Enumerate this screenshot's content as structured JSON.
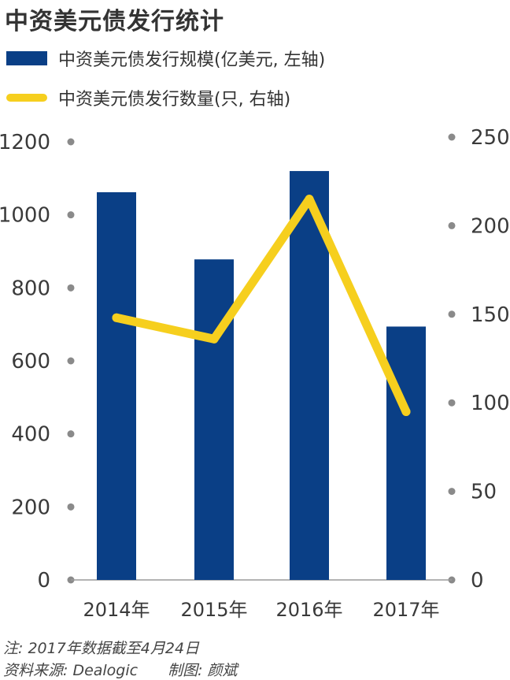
{
  "title": "中资美元债发行统计",
  "colors": {
    "bar": "#0a3f86",
    "line": "#f6cf1e",
    "dot": "#8a8a8a",
    "text": "#3a3a3a"
  },
  "chart_data": {
    "type": "bar",
    "title": "中资美元债发行统计",
    "categories": [
      "2014年",
      "2015年",
      "2016年",
      "2017年"
    ],
    "series": [
      {
        "name": "中资美元债发行规模(亿美元, 左轴)",
        "type": "bar",
        "axis": "left",
        "values": [
          1062,
          878,
          1120,
          694
        ]
      },
      {
        "name": "中资美元债发行数量(只, 右轴)",
        "type": "line",
        "axis": "right",
        "values": [
          148,
          136,
          215,
          95
        ]
      }
    ],
    "y_left": {
      "ylim": [
        0,
        1200
      ],
      "ticks": [
        "0",
        "200",
        "400",
        "600",
        "800",
        "1000",
        "1200"
      ]
    },
    "y_right": {
      "ylim": [
        0,
        250
      ],
      "ticks": [
        "0",
        "50",
        "100",
        "150",
        "200",
        "250"
      ]
    },
    "grid": false,
    "legend_position": "top"
  },
  "footer": {
    "note": "注: 2017年数据截至4月24日",
    "source": "资料来源: Dealogic　　制图: 颜斌"
  }
}
